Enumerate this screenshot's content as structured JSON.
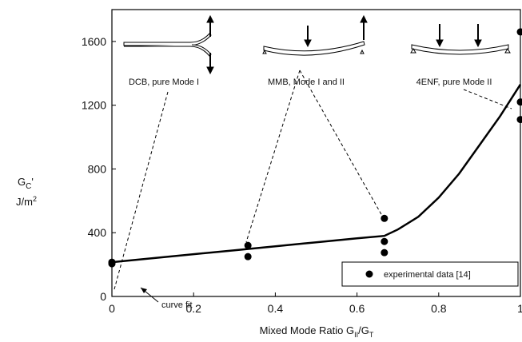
{
  "chart_data": {
    "type": "scatter",
    "y_label": {
      "symbol": "G",
      "subscript": "C",
      "suffix": "'",
      "unit": "J/m",
      "unit_power": "2"
    },
    "x_label": {
      "text": "Mixed Mode Ratio G",
      "subscript": "II",
      "middle": "/G",
      "subscript2": "T"
    },
    "xlim": [
      0,
      1
    ],
    "ylim": [
      0,
      1800
    ],
    "xticks": [
      0,
      0.2,
      0.4,
      0.6,
      0.8,
      1
    ],
    "yticks": [
      0,
      400,
      800,
      1200,
      1600
    ],
    "series": [
      {
        "name": "experimental data [14]",
        "color": "#000000",
        "x": [
          0,
          0,
          0.333,
          0.333,
          0.667,
          0.667,
          0.667,
          1,
          1,
          1
        ],
        "values": [
          215,
          205,
          320,
          250,
          490,
          345,
          275,
          1660,
          1220,
          1110
        ]
      }
    ],
    "curve_fit": {
      "label": "curve fit",
      "color": "#000000",
      "x": [
        0,
        0.1,
        0.2,
        0.3,
        0.4,
        0.5,
        0.6,
        0.667,
        0.7,
        0.75,
        0.8,
        0.85,
        0.9,
        0.95,
        1
      ],
      "values": [
        215,
        240,
        265,
        290,
        315,
        340,
        365,
        380,
        420,
        500,
        620,
        770,
        950,
        1130,
        1330
      ]
    },
    "annotations": [
      "DCB,  pure Mode I",
      "MMB, Mode I and II",
      "4ENF, pure  Mode II"
    ]
  }
}
